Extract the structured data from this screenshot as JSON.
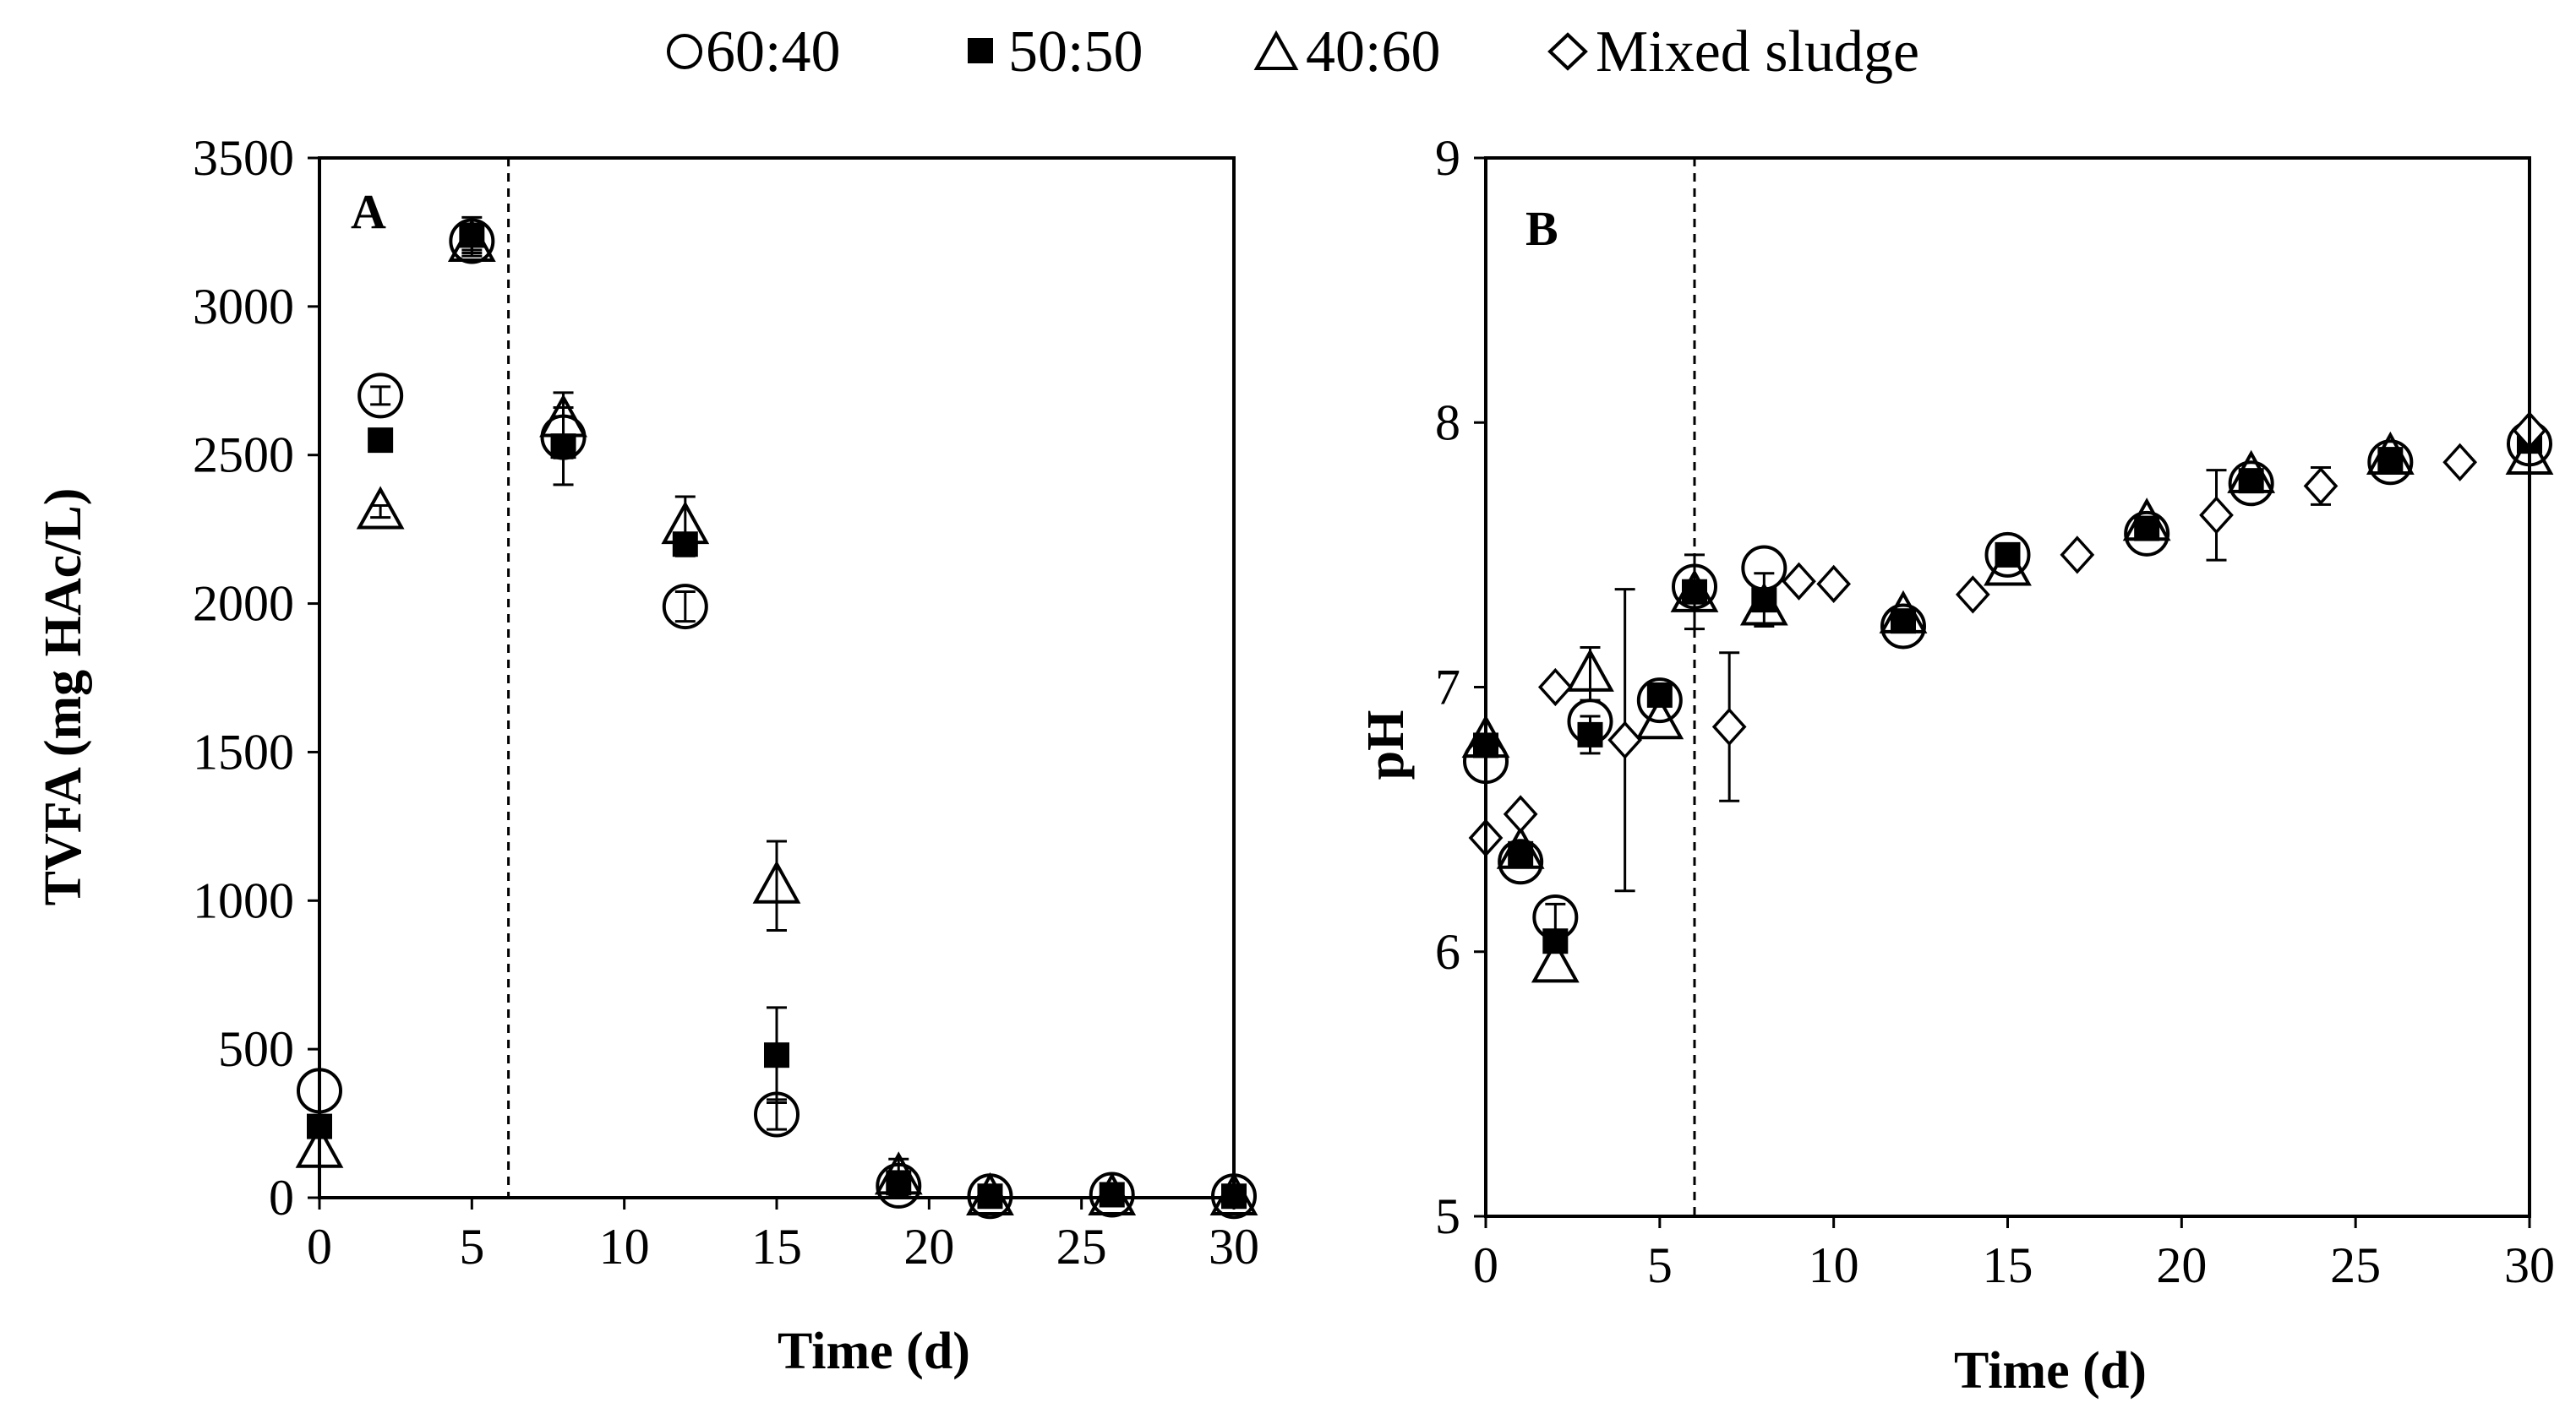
{
  "legend": [
    {
      "label": "60:40",
      "marker": "open-circle"
    },
    {
      "label": "50:50",
      "marker": "filled-square"
    },
    {
      "label": "40:60",
      "marker": "open-triangle"
    },
    {
      "label": "Mixed sludge",
      "marker": "open-diamond"
    }
  ],
  "chart_data": [
    {
      "type": "scatter",
      "panel_label": "A",
      "xlabel": "Time (d)",
      "ylabel": "TVFA (mg HAc/L)",
      "xlim": [
        0,
        30
      ],
      "ylim": [
        0,
        3500
      ],
      "xticks": [
        0,
        5,
        10,
        15,
        20,
        25,
        30
      ],
      "yticks": [
        0,
        500,
        1000,
        1500,
        2000,
        2500,
        3000,
        3500
      ],
      "vline_x": 6.2,
      "series": [
        {
          "name": "60:40",
          "marker": "open-circle",
          "points": [
            [
              0,
              360,
              0
            ],
            [
              2,
              2700,
              30
            ],
            [
              5,
              3220,
              30
            ],
            [
              8,
              2560,
              70
            ],
            [
              12,
              1990,
              50
            ],
            [
              15,
              280,
              50
            ],
            [
              19,
              40,
              20
            ],
            [
              22,
              5,
              10
            ],
            [
              26,
              10,
              10
            ],
            [
              30,
              5,
              10
            ]
          ]
        },
        {
          "name": "50:50",
          "marker": "filled-square",
          "points": [
            [
              0,
              240,
              0
            ],
            [
              2,
              2550,
              0
            ],
            [
              5,
              3240,
              60
            ],
            [
              8,
              2530,
              130
            ],
            [
              12,
              2200,
              0
            ],
            [
              15,
              480,
              160
            ],
            [
              19,
              50,
              30
            ],
            [
              22,
              5,
              0
            ],
            [
              26,
              10,
              0
            ],
            [
              30,
              5,
              0
            ]
          ]
        },
        {
          "name": "40:60",
          "marker": "open-triangle",
          "points": [
            [
              0,
              160,
              0
            ],
            [
              2,
              2310,
              20
            ],
            [
              5,
              3210,
              40
            ],
            [
              8,
              2620,
              90
            ],
            [
              12,
              2260,
              100
            ],
            [
              15,
              1050,
              150
            ],
            [
              19,
              70,
              60
            ],
            [
              22,
              0,
              0
            ],
            [
              26,
              0,
              0
            ],
            [
              30,
              0,
              0
            ]
          ]
        }
      ]
    },
    {
      "type": "scatter",
      "panel_label": "B",
      "xlabel": "Time (d)",
      "ylabel": "pH",
      "xlim": [
        0,
        30
      ],
      "ylim": [
        5,
        9
      ],
      "xticks": [
        0,
        5,
        10,
        15,
        20,
        25,
        30
      ],
      "yticks": [
        5,
        6,
        7,
        8,
        9
      ],
      "vline_x": 6,
      "series": [
        {
          "name": "60:40",
          "marker": "open-circle",
          "points": [
            [
              0,
              6.72,
              0
            ],
            [
              1,
              6.34,
              0
            ],
            [
              2,
              6.13,
              0.05
            ],
            [
              3,
              6.87,
              0
            ],
            [
              5,
              6.95,
              0
            ],
            [
              6,
              7.38,
              0
            ],
            [
              8,
              7.45,
              0
            ],
            [
              12,
              7.23,
              0
            ],
            [
              15,
              7.5,
              0
            ],
            [
              19,
              7.58,
              0
            ],
            [
              22,
              7.77,
              0
            ],
            [
              26,
              7.85,
              0
            ],
            [
              30,
              7.92,
              0
            ]
          ]
        },
        {
          "name": "50:50",
          "marker": "filled-square",
          "points": [
            [
              0,
              6.78,
              0
            ],
            [
              1,
              6.37,
              0
            ],
            [
              2,
              6.04,
              0
            ],
            [
              3,
              6.82,
              0.07
            ],
            [
              5,
              6.97,
              0
            ],
            [
              6,
              7.36,
              0.14
            ],
            [
              8,
              7.33,
              0.1
            ],
            [
              12,
              7.25,
              0
            ],
            [
              15,
              7.5,
              0
            ],
            [
              19,
              7.6,
              0
            ],
            [
              22,
              7.78,
              0
            ],
            [
              26,
              7.86,
              0
            ],
            [
              30,
              7.93,
              0
            ]
          ]
        },
        {
          "name": "40:60",
          "marker": "open-triangle",
          "points": [
            [
              0,
              6.8,
              0
            ],
            [
              1,
              6.38,
              0
            ],
            [
              2,
              5.95,
              0
            ],
            [
              3,
              7.05,
              0.1
            ],
            [
              5,
              6.87,
              0
            ],
            [
              6,
              7.35,
              0
            ],
            [
              8,
              7.3,
              0
            ],
            [
              12,
              7.27,
              0
            ],
            [
              15,
              7.45,
              0
            ],
            [
              19,
              7.62,
              0
            ],
            [
              22,
              7.8,
              0
            ],
            [
              26,
              7.87,
              0
            ],
            [
              30,
              7.87,
              0
            ]
          ]
        },
        {
          "name": "Mixed sludge",
          "marker": "open-diamond",
          "points": [
            [
              0,
              6.43,
              0
            ],
            [
              1,
              6.52,
              0
            ],
            [
              2,
              7.0,
              0
            ],
            [
              4,
              6.8,
              0.57
            ],
            [
              7,
              6.85,
              0.28
            ],
            [
              9,
              7.4,
              0
            ],
            [
              10,
              7.39,
              0
            ],
            [
              14,
              7.35,
              0
            ],
            [
              17,
              7.5,
              0
            ],
            [
              21,
              7.65,
              0.17
            ],
            [
              24,
              7.76,
              0.07
            ],
            [
              28,
              7.85,
              0
            ],
            [
              30,
              7.97,
              0
            ]
          ]
        }
      ]
    }
  ]
}
